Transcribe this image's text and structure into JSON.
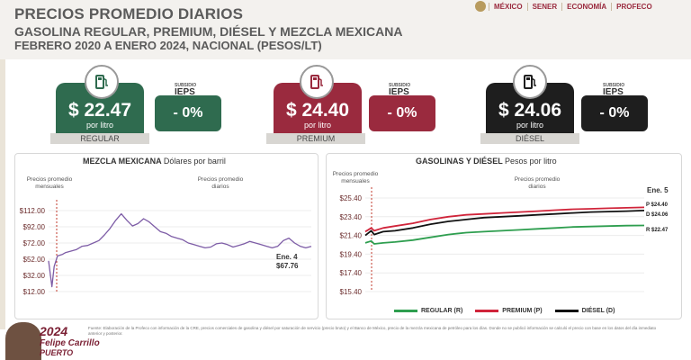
{
  "header": {
    "title1": "PRECIOS PROMEDIO DIARIOS",
    "title2": "GASOLINA REGULAR, PREMIUM, DIÉSEL Y MEZCLA MEXICANA",
    "title3": "FEBRERO 2020 A ENERO 2024, NACIONAL (PESOS/LT)"
  },
  "logos": [
    "MÉXICO",
    "SENER",
    "ECONOMÍA",
    "PROFECO"
  ],
  "cards": [
    {
      "price": "$ 22.47",
      "unit": "por litro",
      "label": "REGULAR",
      "ieps_small": "SUBSIDIO",
      "ieps_label": "IEPS",
      "ieps_value": "- 0%",
      "color": "#2f6b4f"
    },
    {
      "price": "$ 24.40",
      "unit": "por litro",
      "label": "PREMIUM",
      "ieps_small": "SUBSIDIO",
      "ieps_label": "IEPS",
      "ieps_value": "- 0%",
      "color": "#9a2a3e"
    },
    {
      "price": "$ 24.06",
      "unit": "por litro",
      "label": "DIÉSEL",
      "ieps_small": "SUBSIDIO",
      "ieps_label": "IEPS",
      "ieps_value": "- 0%",
      "color": "#1e1e1e"
    }
  ],
  "chart_data": [
    {
      "type": "line",
      "title": "MEZCLA MEXICANA",
      "subtitle": "Dólares por barril",
      "annotations": [
        "Precios promedio mensuales",
        "Precios promedio diarios"
      ],
      "yticks": [
        "$112.00",
        "$92.00",
        "$72.00",
        "$52.00",
        "$32.00",
        "$12.00"
      ],
      "ylim": [
        12,
        112
      ],
      "end_label": "Ene. 4",
      "end_value": "$67.76",
      "series": [
        {
          "color": "#7d5ca6",
          "x": [
            0,
            0.6,
            1,
            1.6,
            2.5,
            3,
            4,
            5,
            6,
            7,
            8,
            9,
            10,
            11,
            12,
            13,
            14,
            15,
            16,
            17,
            18,
            19,
            20,
            21,
            22,
            23,
            24,
            25,
            26,
            27,
            28,
            29,
            30,
            31,
            32,
            33,
            34,
            35,
            36,
            37,
            38,
            39,
            40,
            41,
            42,
            43,
            44,
            45,
            46,
            47
          ],
          "y": [
            50,
            18,
            43,
            56,
            58,
            60,
            62,
            64,
            68,
            69,
            72,
            75,
            82,
            90,
            100,
            108,
            100,
            93,
            96,
            102,
            98,
            92,
            86,
            84,
            80,
            78,
            76,
            72,
            70,
            68,
            66,
            67,
            71,
            72,
            70,
            67,
            69,
            71,
            74,
            72,
            70,
            68,
            66,
            68,
            75,
            78,
            72,
            68,
            66,
            67.76
          ]
        }
      ]
    },
    {
      "type": "line",
      "title": "GASOLINAS Y DIÉSEL",
      "subtitle": "Pesos por litro",
      "annotations": [
        "Precios promedio mensuales",
        "Precios promedio diarios"
      ],
      "yticks": [
        "$25.40",
        "$23.40",
        "$21.40",
        "$19.40",
        "$17.40",
        "$15.40"
      ],
      "ylim": [
        15.4,
        25.4
      ],
      "end_label": "Ene. 5",
      "end_labels": [
        "P $24.40",
        "D $24.06",
        "R $22.47"
      ],
      "series": [
        {
          "name": "REGULAR (R)",
          "color": "#2e9e4f",
          "x": [
            0,
            1,
            1.5,
            3,
            5,
            8,
            11,
            14,
            17,
            20,
            23,
            26,
            29,
            32,
            35,
            38,
            41,
            44,
            47
          ],
          "y": [
            20.6,
            20.8,
            20.5,
            20.6,
            20.7,
            20.9,
            21.2,
            21.5,
            21.7,
            21.8,
            21.9,
            22.0,
            22.1,
            22.2,
            22.3,
            22.35,
            22.4,
            22.45,
            22.47
          ]
        },
        {
          "name": "PREMIUM (P)",
          "color": "#d0243a",
          "x": [
            0,
            1,
            1.5,
            3,
            5,
            8,
            11,
            14,
            17,
            20,
            23,
            26,
            29,
            32,
            35,
            38,
            41,
            44,
            47
          ],
          "y": [
            21.8,
            22.2,
            21.9,
            22.2,
            22.4,
            22.7,
            23.1,
            23.4,
            23.6,
            23.7,
            23.8,
            23.9,
            24.0,
            24.1,
            24.2,
            24.25,
            24.3,
            24.35,
            24.4
          ]
        },
        {
          "name": "DIÉSEL (D)",
          "color": "#111111",
          "x": [
            0,
            1,
            1.5,
            3,
            5,
            8,
            11,
            14,
            17,
            20,
            23,
            26,
            29,
            32,
            35,
            38,
            41,
            44,
            47
          ],
          "y": [
            21.4,
            21.9,
            21.5,
            21.8,
            21.9,
            22.2,
            22.6,
            22.9,
            23.1,
            23.3,
            23.4,
            23.5,
            23.6,
            23.7,
            23.8,
            23.9,
            23.95,
            24.0,
            24.06
          ]
        }
      ]
    }
  ],
  "footnote": "Fuente: Elaboración de la Profeco con información de la CRE, precios comerciales de gasolina y diésel por saturación de servicio (precio bruto) y el Banco de México, precio de la mezcla mexicana de petróleo para los días. Donde no se publicó información se calculó el precio con base en los datos del día inmediato anterior y posterior.",
  "slogan": {
    "year": "2024",
    "name": "Felipe Carrillo",
    "name2": "PUERTO"
  }
}
